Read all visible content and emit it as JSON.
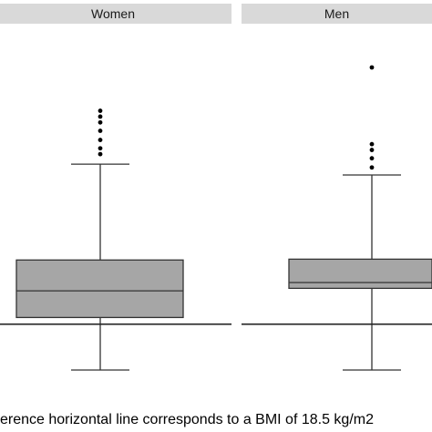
{
  "caption": "erence horizontal line corresponds to a BMI of 18.5 kg/m2",
  "chart_data": {
    "type": "box",
    "reference_line": 18.5,
    "panels": [
      {
        "strip": "Women",
        "whisker_low": 13.0,
        "q1": 19.3,
        "median": 22.5,
        "q3": 26.2,
        "whisker_high": 37.7,
        "outliers": [
          38.9,
          39.6,
          40.6,
          41.7,
          42.7,
          43.4,
          44.1
        ]
      },
      {
        "strip": "Men",
        "whisker_low": 13.0,
        "q1": 22.8,
        "median": 23.5,
        "q3": 26.3,
        "whisker_high": 36.4,
        "outliers": [
          37.3,
          38.4,
          39.4,
          40.1,
          49.3
        ]
      }
    ],
    "colors": {
      "box_fill": "#a6a6a6",
      "strip_fill": "#d9d9d9",
      "line": "#333333",
      "point": "#000000"
    }
  }
}
